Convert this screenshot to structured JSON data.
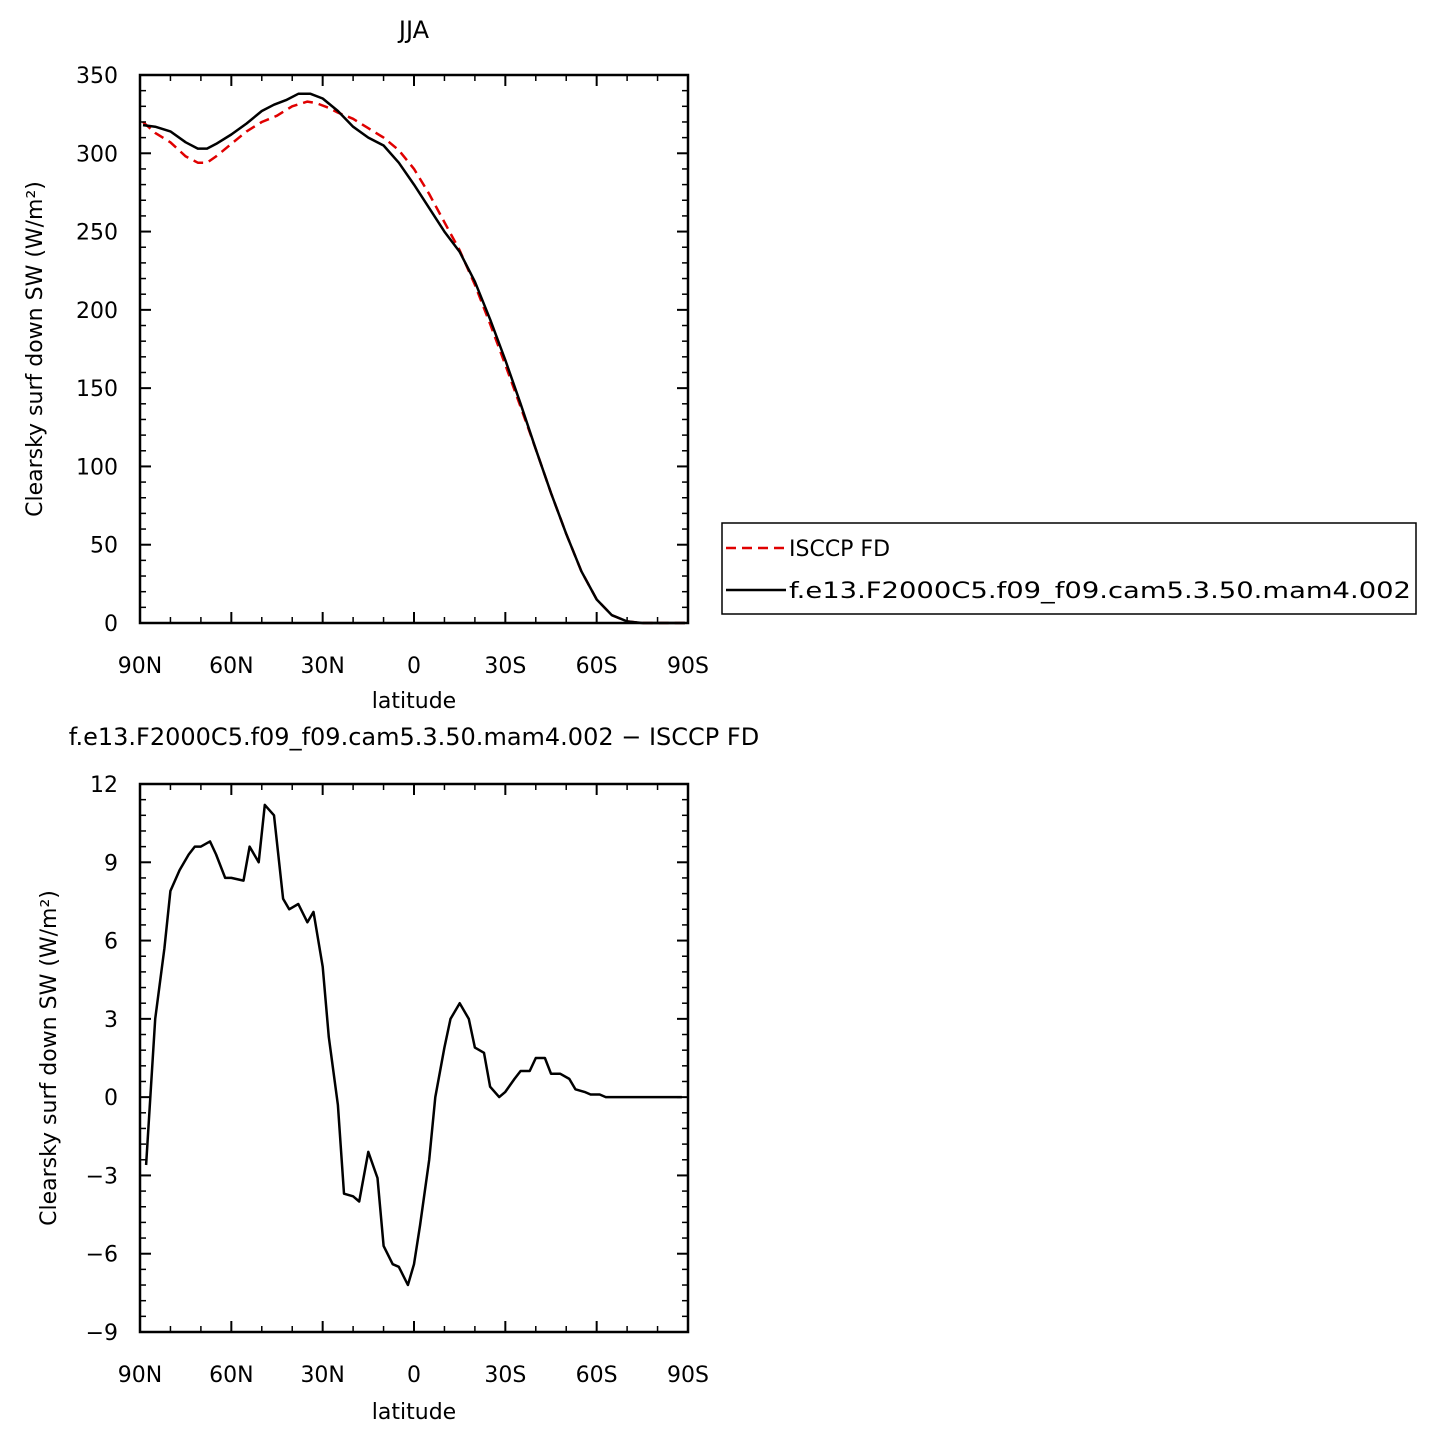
{
  "chart_data": [
    {
      "type": "line",
      "title": "JJA",
      "xlabel": "latitude",
      "ylabel": "Clearsky surf down SW (W/m²)",
      "xlim": [
        90,
        -90
      ],
      "ylim": [
        0,
        350
      ],
      "x_ticks": [
        90,
        60,
        30,
        0,
        -30,
        -60,
        -90
      ],
      "x_tick_labels": [
        "90N",
        "60N",
        "30N",
        "0",
        "30S",
        "60S",
        "90S"
      ],
      "y_ticks": [
        0,
        50,
        100,
        150,
        200,
        250,
        300,
        350
      ],
      "y_tick_labels": [
        "0",
        "50",
        "100",
        "150",
        "200",
        "250",
        "300",
        "350"
      ],
      "legend_position": "right",
      "series": [
        {
          "name": "ISCCP FD",
          "color": "#e00000",
          "dash": "dashed",
          "x": [
            89,
            85,
            80,
            75,
            71,
            68,
            65,
            60,
            55,
            50,
            45,
            40,
            35,
            32,
            28,
            25,
            20,
            15,
            10,
            5,
            0,
            -5,
            -10,
            -15,
            -20,
            -25,
            -30,
            -35,
            -40,
            -45,
            -50,
            -55,
            -60,
            -65,
            -70,
            -75,
            -80,
            -85,
            -89
          ],
          "y": [
            320,
            313,
            307,
            298,
            294,
            294,
            298,
            306,
            314,
            320,
            324,
            330,
            333,
            332,
            329,
            326,
            322,
            316,
            310,
            302,
            290,
            274,
            256,
            238,
            216,
            191,
            165,
            138,
            111,
            83,
            57,
            33,
            15,
            5,
            1,
            0,
            0,
            0,
            0
          ]
        },
        {
          "name": "f.e13.F2000C5.f09_f09.cam5.3.50.mam4.002",
          "color": "#000000",
          "dash": "solid",
          "x": [
            89,
            85,
            80,
            75,
            71,
            68,
            65,
            60,
            55,
            50,
            46,
            42,
            38,
            34,
            30,
            25,
            20,
            15,
            10,
            5,
            0,
            -5,
            -10,
            -15,
            -20,
            -25,
            -30,
            -35,
            -40,
            -45,
            -50,
            -55,
            -60,
            -65,
            -70,
            -75,
            -80,
            -85,
            -89
          ],
          "y": [
            318,
            317,
            314,
            307,
            303,
            303,
            306,
            312,
            319,
            327,
            331,
            334,
            338,
            338,
            335,
            327,
            317,
            310,
            305,
            294,
            280,
            265,
            250,
            237,
            218,
            194,
            168,
            140,
            111,
            83,
            57,
            33,
            15,
            5,
            1,
            0,
            0,
            0,
            0
          ]
        }
      ]
    },
    {
      "type": "line",
      "title": "f.e13.F2000C5.f09_f09.cam5.3.50.mam4.002 − ISCCP FD",
      "xlabel": "latitude",
      "ylabel": "Clearsky surf down SW (W/m²)",
      "xlim": [
        90,
        -90
      ],
      "ylim": [
        -9,
        12
      ],
      "x_ticks": [
        90,
        60,
        30,
        0,
        -30,
        -60,
        -90
      ],
      "x_tick_labels": [
        "90N",
        "60N",
        "30N",
        "0",
        "30S",
        "60S",
        "90S"
      ],
      "y_ticks": [
        -9,
        -6,
        -3,
        0,
        3,
        6,
        9,
        12
      ],
      "y_tick_labels": [
        "−9",
        "−6",
        "−3",
        "0",
        "3",
        "6",
        "9",
        "12"
      ],
      "series": [
        {
          "color": "#000000",
          "dash": "solid",
          "x": [
            88,
            85,
            82,
            80,
            77,
            74,
            72,
            70,
            67,
            65,
            62,
            60,
            56,
            54,
            51,
            49,
            46,
            43,
            41,
            38,
            35,
            33,
            30,
            28,
            25,
            23,
            20,
            18,
            15,
            12,
            10,
            7,
            5,
            2,
            0,
            -2,
            -5,
            -7,
            -10,
            -12,
            -15,
            -18,
            -20,
            -23,
            -25,
            -28,
            -30,
            -33,
            -35,
            -38,
            -40,
            -43,
            -45,
            -48,
            -51,
            -53,
            -56,
            -58,
            -61,
            -63,
            -66,
            -68,
            -71,
            -74,
            -76,
            -79,
            -81,
            -84,
            -86,
            -88
          ],
          "y": [
            -2.6,
            3.0,
            5.7,
            7.9,
            8.7,
            9.3,
            9.6,
            9.6,
            9.8,
            9.3,
            8.4,
            8.4,
            8.3,
            9.6,
            9.0,
            11.2,
            10.8,
            7.6,
            7.2,
            7.4,
            6.7,
            7.1,
            5.0,
            2.3,
            -0.3,
            -3.7,
            -3.8,
            -4.0,
            -2.1,
            -3.1,
            -5.7,
            -6.4,
            -6.5,
            -7.2,
            -6.4,
            -4.9,
            -2.4,
            0.0,
            1.9,
            3.0,
            3.6,
            3.0,
            1.9,
            1.7,
            0.4,
            0.0,
            0.2,
            0.7,
            1.0,
            1.0,
            1.5,
            1.5,
            0.9,
            0.9,
            0.7,
            0.3,
            0.2,
            0.1,
            0.1,
            0.0,
            0.0,
            0.0,
            0.0,
            0.0,
            0.0,
            0.0,
            0.0,
            0.0,
            0.0,
            0.0
          ]
        }
      ]
    }
  ]
}
